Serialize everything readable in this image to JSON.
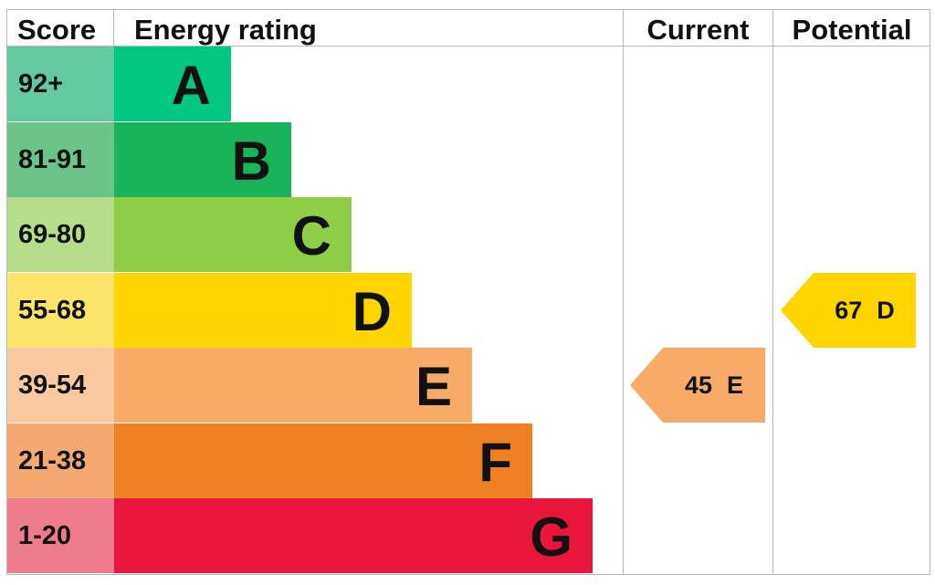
{
  "headers": {
    "score": "Score",
    "energy_rating": "Energy rating",
    "current": "Current",
    "potential": "Potential"
  },
  "chart_data": {
    "type": "table",
    "bands": [
      {
        "score": "92+",
        "letter": "A",
        "color": "#00c781",
        "score_color": "#63c9a0"
      },
      {
        "score": "81-91",
        "letter": "B",
        "color": "#19b459",
        "score_color": "#6cc48a"
      },
      {
        "score": "69-80",
        "letter": "C",
        "color": "#8dce46",
        "score_color": "#b6de8a"
      },
      {
        "score": "55-68",
        "letter": "D",
        "color": "#ffd500",
        "score_color": "#ffe36b"
      },
      {
        "score": "39-54",
        "letter": "E",
        "color": "#f8ab67",
        "score_color": "#fbc9a0"
      },
      {
        "score": "21-38",
        "letter": "F",
        "color": "#ef8024",
        "score_color": "#f4a872"
      },
      {
        "score": "1-20",
        "letter": "G",
        "color": "#e9153b",
        "score_color": "#ef7b8f"
      }
    ],
    "current": {
      "value": 45,
      "letter": "E",
      "color": "#f8ab67"
    },
    "potential": {
      "value": 67,
      "letter": "D",
      "color": "#ffd500"
    }
  }
}
